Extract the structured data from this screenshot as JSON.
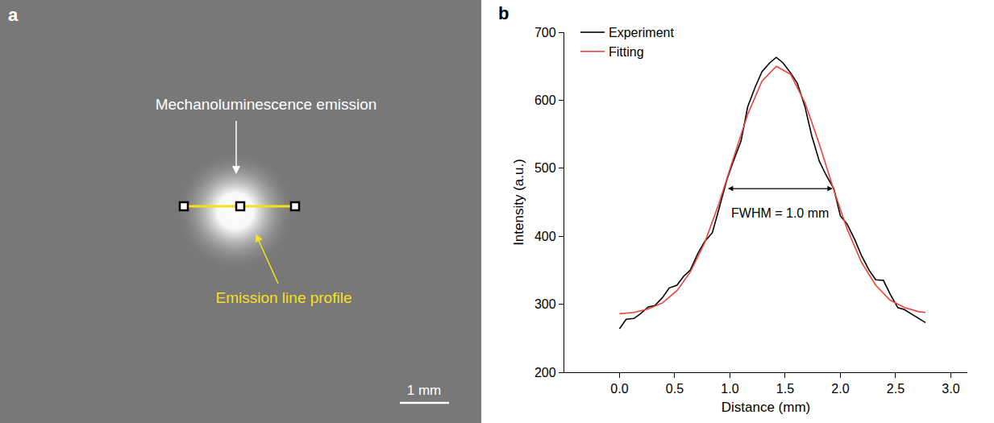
{
  "chart_data": [
    {
      "type": "image",
      "title": "a",
      "annotations": [
        "Mechanoluminescence emission",
        "Emission line profile"
      ],
      "scale_bar": "1 mm"
    },
    {
      "type": "line",
      "title": "b",
      "xlabel": "Distance (mm)",
      "ylabel": "Intensity (a.u.)",
      "xlim": [
        -0.5,
        3.15
      ],
      "xticks": [
        {
          "value": 0,
          "label": "0.0"
        },
        0.5,
        {
          "value": 1,
          "label": "1.0"
        },
        1.5,
        {
          "value": 2,
          "label": "2.0"
        },
        2.5,
        {
          "value": 3,
          "label": "3.0"
        }
      ],
      "ylim": [
        200,
        700
      ],
      "yticks": [
        200,
        300,
        400,
        500,
        600,
        700
      ],
      "legend": "upper left",
      "series": [
        {
          "name": "Experiment",
          "color": "#000000",
          "x": [
            0.0,
            0.06,
            0.13,
            0.19,
            0.26,
            0.32,
            0.39,
            0.45,
            0.52,
            0.58,
            0.64,
            0.71,
            0.77,
            0.84,
            0.9,
            0.97,
            1.03,
            1.1,
            1.16,
            1.23,
            1.29,
            1.36,
            1.42,
            1.48,
            1.55,
            1.61,
            1.68,
            1.74,
            1.81,
            1.87,
            1.94,
            2.0,
            2.06,
            2.13,
            2.19,
            2.26,
            2.32,
            2.39,
            2.45,
            2.52,
            2.58,
            2.65,
            2.71,
            2.77
          ],
          "values": [
            264,
            278,
            279,
            286,
            296,
            298,
            310,
            324,
            328,
            341,
            350,
            375,
            392,
            405,
            440,
            482,
            510,
            540,
            590,
            620,
            642,
            655,
            663,
            655,
            640,
            625,
            590,
            548,
            510,
            490,
            470,
            430,
            418,
            395,
            372,
            350,
            336,
            335,
            315,
            295,
            292,
            285,
            280,
            273
          ]
        },
        {
          "name": "Fitting",
          "color": "#e8453c",
          "x": [
            0.0,
            0.13,
            0.26,
            0.39,
            0.52,
            0.64,
            0.77,
            0.9,
            1.03,
            1.16,
            1.29,
            1.42,
            1.55,
            1.68,
            1.81,
            1.94,
            2.06,
            2.19,
            2.32,
            2.45,
            2.58,
            2.71,
            2.77
          ],
          "values": [
            286,
            288,
            293,
            302,
            320,
            347,
            390,
            448,
            514,
            579,
            628,
            650,
            638,
            596,
            535,
            468,
            411,
            362,
            328,
            306,
            295,
            289,
            288
          ]
        }
      ],
      "annotations": [
        "FWHM = 1.0 mm"
      ],
      "fwhm_arrow": {
        "x": [
          0.97,
          1.93
        ],
        "y": 470
      }
    }
  ]
}
